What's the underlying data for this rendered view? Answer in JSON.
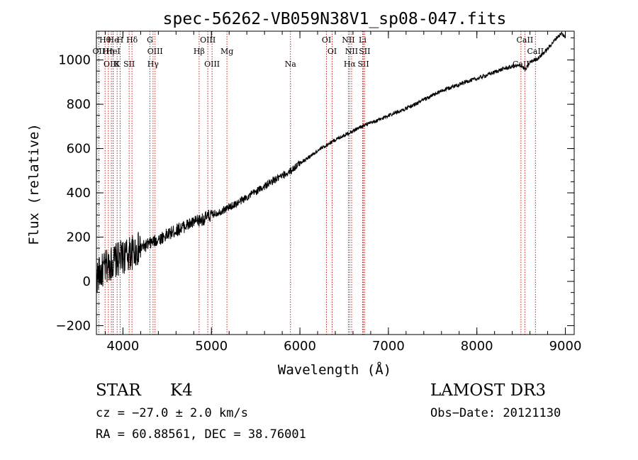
{
  "chart_data": {
    "type": "line",
    "title": "spec-56262-VB059N38V1_sp08-047.fits",
    "xlabel": "Wavelength (Å)",
    "ylabel": "Flux (relative)",
    "xlim": [
      3700,
      9100
    ],
    "ylim": [
      -240,
      1130
    ],
    "xticks": [
      4000,
      5000,
      6000,
      7000,
      8000,
      9000
    ],
    "yticks": [
      -200,
      0,
      200,
      400,
      600,
      800,
      1000
    ],
    "xtick_labels": [
      "4000",
      "5000",
      "6000",
      "7000",
      "8000",
      "9000"
    ],
    "ytick_labels": [
      "−200",
      "0",
      "200",
      "400",
      "600",
      "800",
      "1000"
    ],
    "series": [
      {
        "name": "flux",
        "x": [
          3700,
          3750,
          3800,
          3850,
          3900,
          3950,
          4000,
          4100,
          4200,
          4300,
          4400,
          4500,
          4600,
          4700,
          4800,
          4900,
          5000,
          5100,
          5200,
          5300,
          5400,
          5500,
          5600,
          5700,
          5800,
          5900,
          6000,
          6100,
          6200,
          6300,
          6400,
          6500,
          6600,
          6700,
          6800,
          6900,
          7000,
          7100,
          7200,
          7300,
          7400,
          7500,
          7600,
          7700,
          7800,
          7900,
          8000,
          8100,
          8200,
          8300,
          8400,
          8500,
          8550,
          8600,
          8700,
          8800,
          8900,
          8960,
          9000
        ],
        "y": [
          20,
          40,
          60,
          80,
          90,
          100,
          110,
          130,
          150,
          170,
          190,
          210,
          230,
          250,
          265,
          280,
          300,
          315,
          335,
          355,
          380,
          405,
          430,
          455,
          475,
          500,
          535,
          560,
          590,
          615,
          640,
          660,
          680,
          700,
          715,
          730,
          750,
          765,
          780,
          800,
          820,
          840,
          860,
          875,
          890,
          905,
          915,
          930,
          945,
          960,
          970,
          975,
          955,
          990,
          1010,
          1050,
          1100,
          1120,
          1100
        ]
      }
    ],
    "lines": [
      {
        "label": "Hθ",
        "x": 3798
      },
      {
        "label": "OII",
        "x": 3727
      },
      {
        "label": "OIII",
        "x": 3869
      },
      {
        "label": "He",
        "x": 3889
      },
      {
        "label": "Hη",
        "x": 3835
      },
      {
        "label": "K",
        "x": 3934
      },
      {
        "label": "H",
        "x": 3968
      },
      {
        "label": "HeI",
        "x": 3889
      },
      {
        "label": "SII",
        "x": 4070
      },
      {
        "label": "Hδ",
        "x": 4102
      },
      {
        "label": "OIII",
        "x": 4363
      },
      {
        "label": "Hγ",
        "x": 4340
      },
      {
        "label": "G",
        "x": 4305
      },
      {
        "label": "Hβ",
        "x": 4861
      },
      {
        "label": "OIII",
        "x": 5007
      },
      {
        "label": "OIII",
        "x": 4959
      },
      {
        "label": "Mg",
        "x": 5175
      },
      {
        "label": "Na",
        "x": 5893
      },
      {
        "label": "OI",
        "x": 6300
      },
      {
        "label": "OI",
        "x": 6364
      },
      {
        "label": "Hα",
        "x": 6563
      },
      {
        "label": "NII",
        "x": 6548
      },
      {
        "label": "NII",
        "x": 6584
      },
      {
        "label": "SII",
        "x": 6717
      },
      {
        "label": "Li",
        "x": 6708
      },
      {
        "label": "SII",
        "x": 6731
      },
      {
        "label": "CaII",
        "x": 8498
      },
      {
        "label": "CaII",
        "x": 8542
      },
      {
        "label": "CaII",
        "x": 8662
      }
    ]
  },
  "info": {
    "object_class": "STAR",
    "subclass": "K4",
    "survey": "LAMOST DR3",
    "redshift": "cz = −27.0 ± 2.0 km/s",
    "obs_date": "Obs−Date: 20121130",
    "coords": "RA =  60.88561, DEC =  38.76001"
  }
}
